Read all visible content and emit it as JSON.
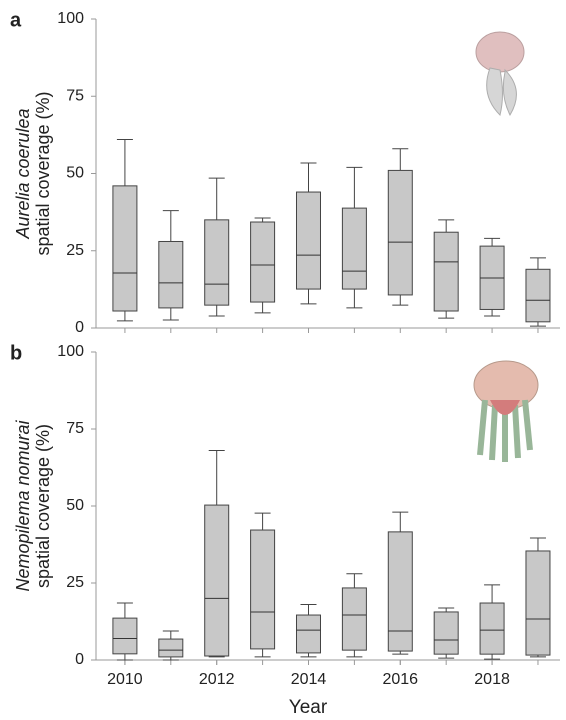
{
  "chart_data": [
    {
      "type": "box",
      "panel": "a",
      "ylabel": [
        "Aurelia coerulea",
        "spatial coverage (%)"
      ],
      "x": [
        2010,
        2011,
        2012,
        2013,
        2014,
        2015,
        2016,
        2017,
        2018,
        2019
      ],
      "xlim": [
        2009.37,
        2019.48
      ],
      "ylim": [
        0,
        100
      ],
      "yticks": [
        0,
        25,
        50,
        75,
        100
      ],
      "color": "#c8c8c8",
      "min": [
        2.3,
        2.6,
        3.9,
        4.9,
        7.8,
        6.5,
        7.4,
        3.2,
        3.9,
        0.6
      ],
      "q1": [
        5.5,
        6.5,
        7.4,
        8.4,
        12.6,
        12.6,
        10.7,
        5.5,
        6,
        2
      ],
      "median": [
        17.8,
        14.6,
        14.2,
        20.4,
        23.6,
        18.4,
        27.8,
        21.4,
        16.2,
        9
      ],
      "q3": [
        46,
        28,
        35,
        34.3,
        44,
        38.8,
        51,
        31,
        26.5,
        19
      ],
      "max": [
        61,
        38,
        48.5,
        35.6,
        53.4,
        52,
        58,
        35,
        29,
        22.7
      ]
    },
    {
      "type": "box",
      "panel": "b",
      "ylabel": [
        "Nemopilema nomurai",
        "spatial coverage (%)"
      ],
      "xlabel": "Year",
      "x": [
        2010,
        2011,
        2012,
        2013,
        2014,
        2015,
        2016,
        2017,
        2018,
        2019
      ],
      "xlim": [
        2009.37,
        2019.48
      ],
      "xticks": [
        2010,
        2012,
        2014,
        2016,
        2018
      ],
      "ylim": [
        0,
        100
      ],
      "yticks": [
        0,
        25,
        50,
        75,
        100
      ],
      "color": "#c8c8c8",
      "min": [
        0,
        0,
        1,
        1,
        1,
        1,
        1.9,
        0.6,
        0.3,
        1
      ],
      "q1": [
        2,
        1,
        1.3,
        3.6,
        2.3,
        3.2,
        2.9,
        1.9,
        1.9,
        1.6
      ],
      "median": [
        7,
        3.2,
        20,
        15.6,
        9.7,
        14.6,
        9.4,
        6.5,
        9.7,
        13.3
      ],
      "q3": [
        13.6,
        6.8,
        50.3,
        42.2,
        14.6,
        23.4,
        41.6,
        15.6,
        18.5,
        35.4
      ],
      "max": [
        18.5,
        9.4,
        68,
        47.7,
        18,
        28,
        48,
        16.9,
        24.4,
        39.6
      ]
    }
  ]
}
